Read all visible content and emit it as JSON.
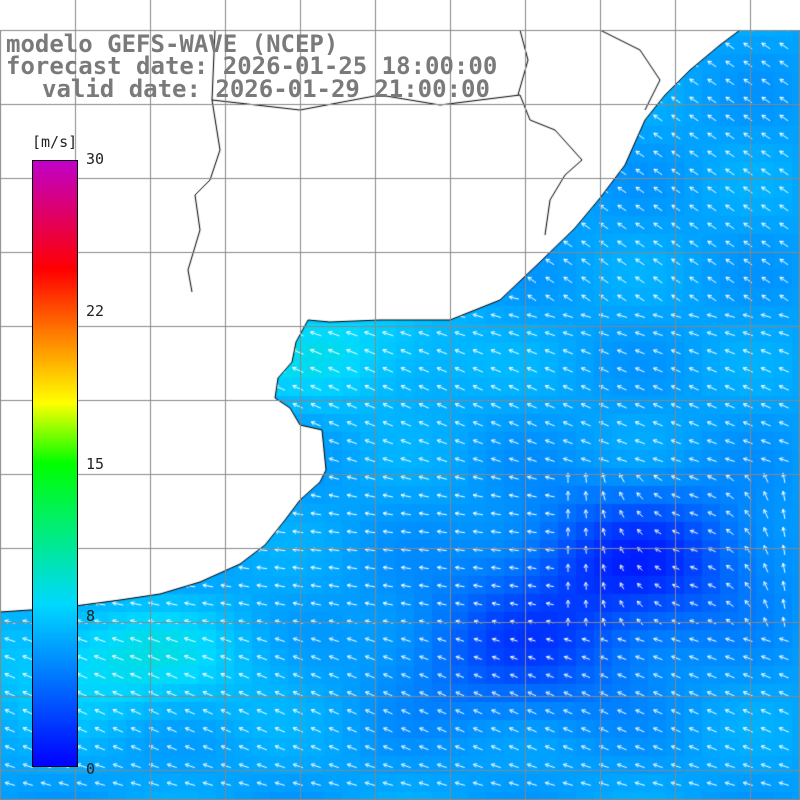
{
  "title": {
    "model": "modelo GEFS-WAVE (NCEP)",
    "forecast": "forecast date: 2026-01-25 18:00:00",
    "valid": "valid date: 2026-01-29 21:00:00"
  },
  "colorbar": {
    "unit": "[m/s]",
    "ticks": [
      "30",
      "22",
      "15",
      "8",
      "0"
    ],
    "range": [
      0,
      30
    ],
    "colors": [
      "#0000ff",
      "#00d8ff",
      "#00ff00",
      "#ffff00",
      "#ff6a00",
      "#ff0000",
      "#c000c8"
    ]
  },
  "map": {
    "variable": "wind speed and direction",
    "land_color": "#ffffff",
    "coastline_color": "#000000",
    "grid_color": "#888888",
    "arrow_color": "#ffffff"
  }
}
